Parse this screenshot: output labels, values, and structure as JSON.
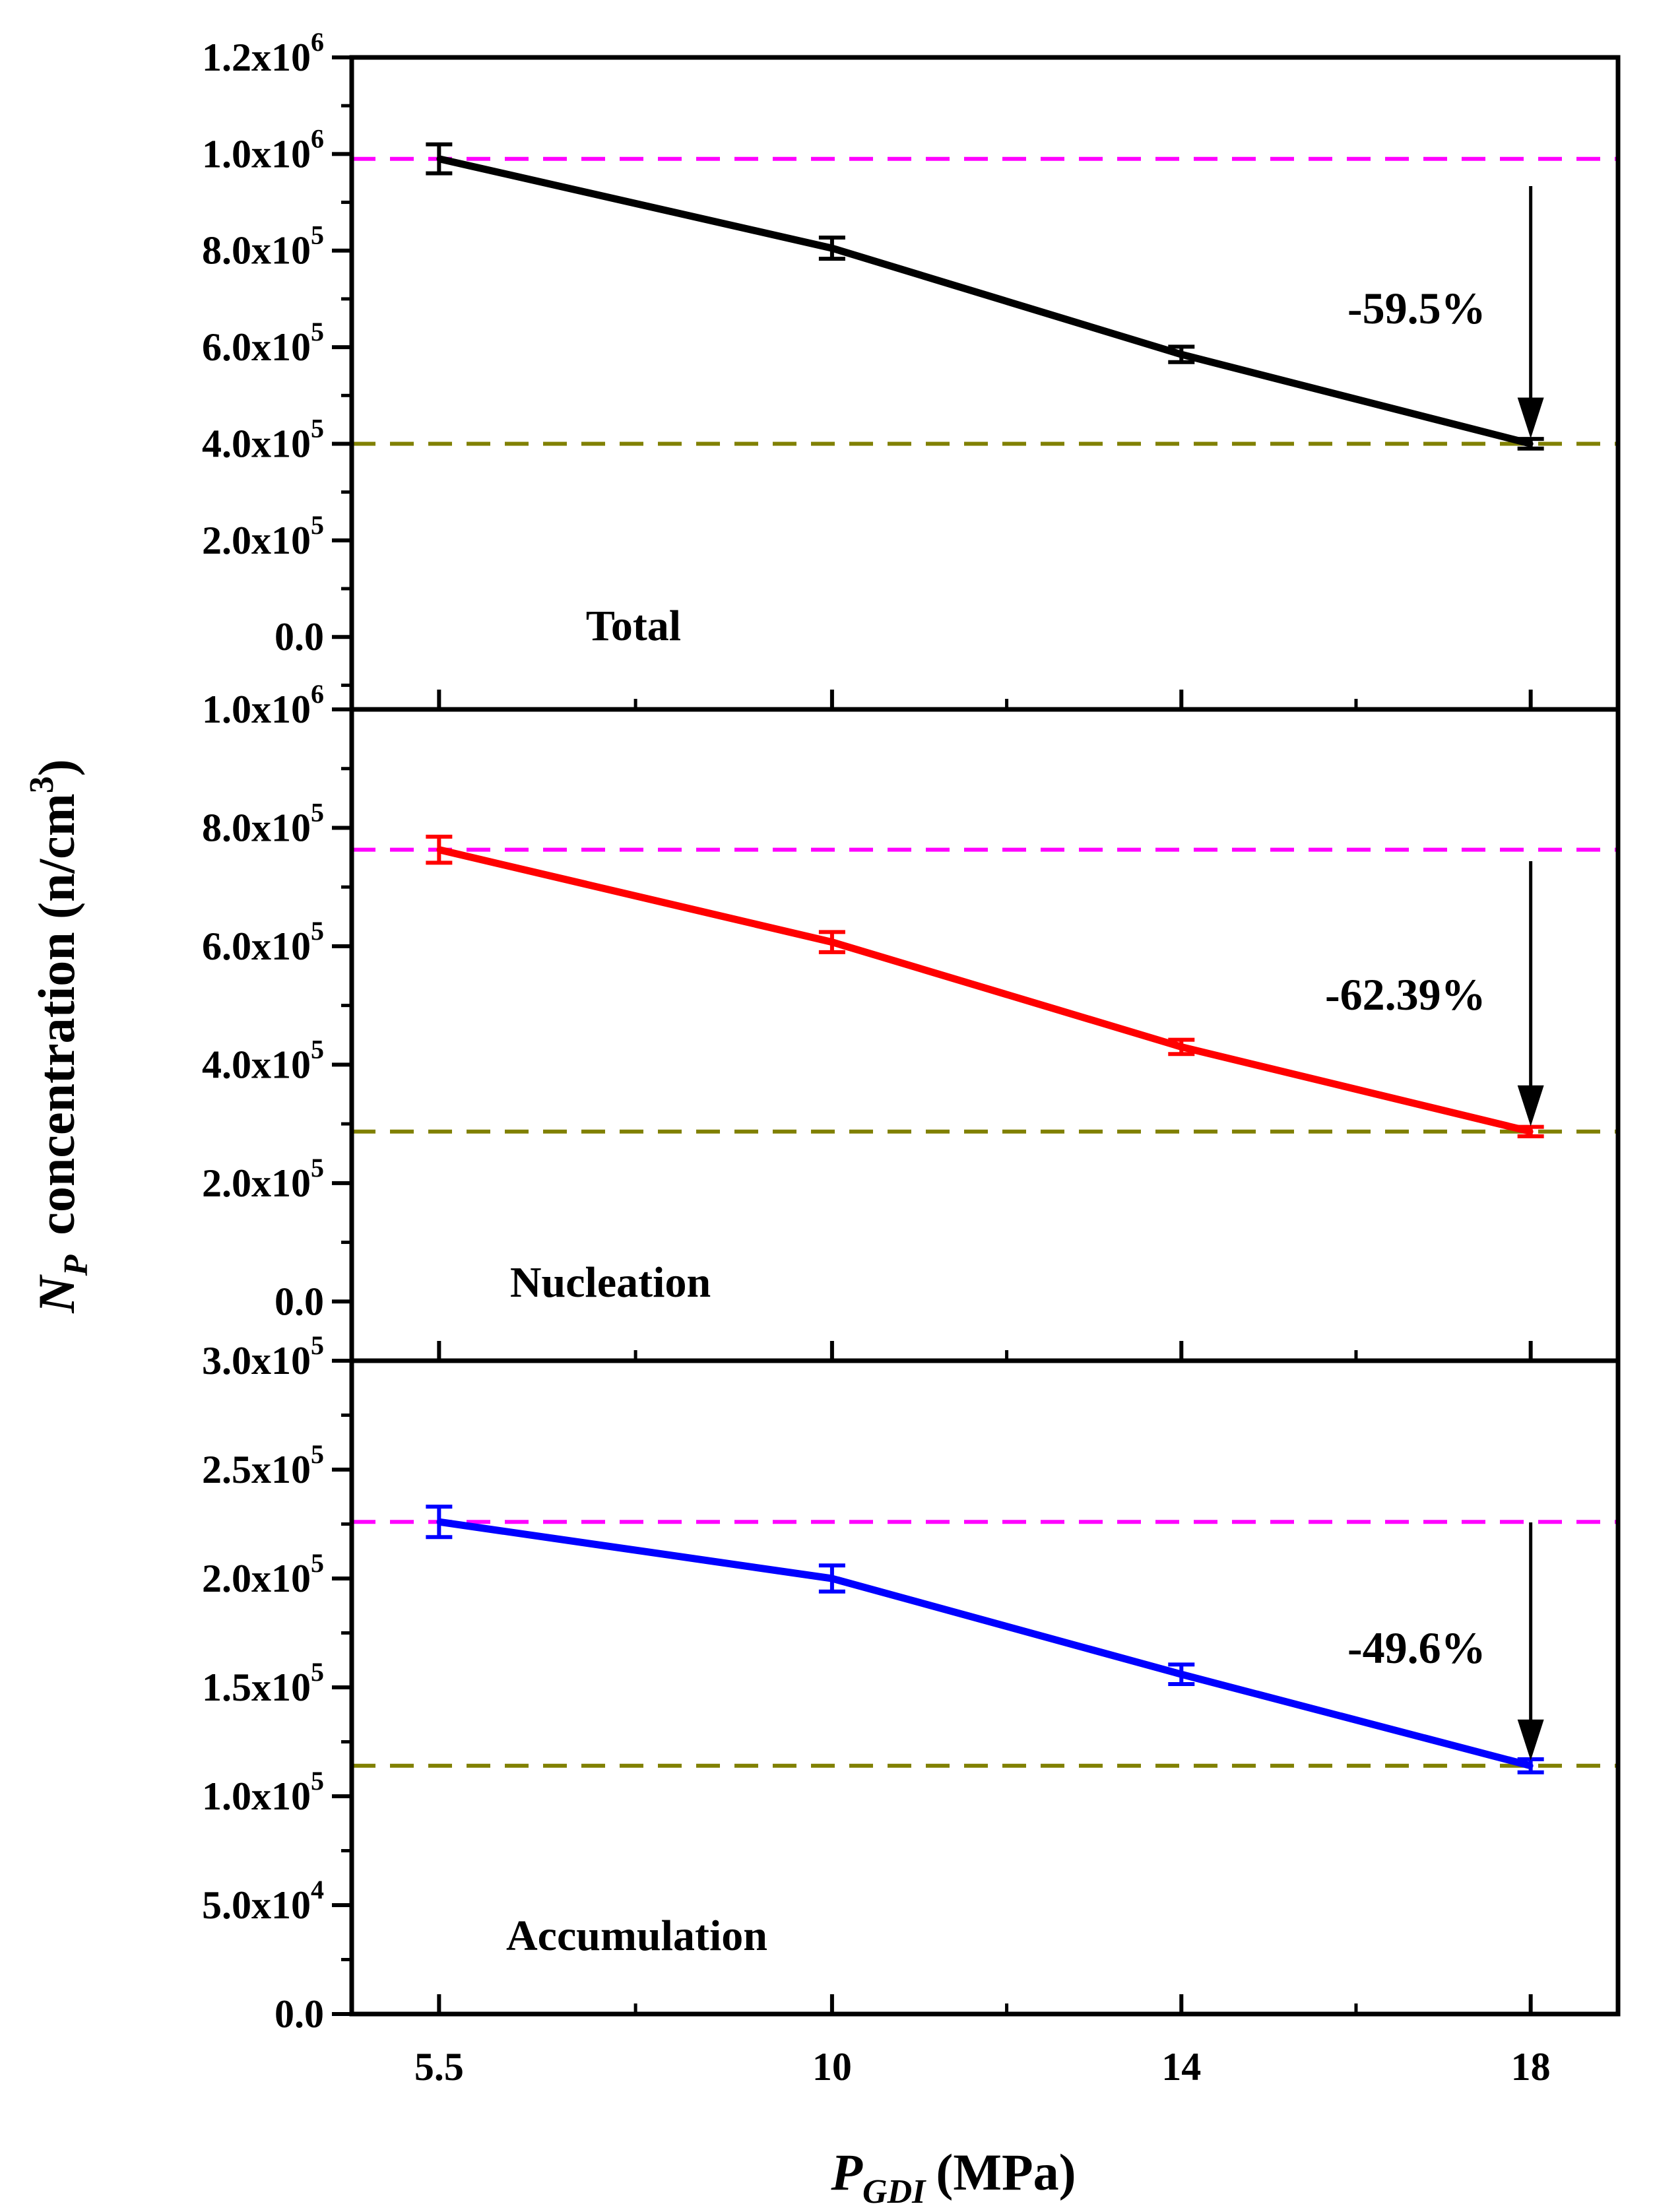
{
  "chart_data": {
    "type": "line",
    "shared_x": {
      "categories": [
        "5.5",
        "10",
        "14",
        "18"
      ],
      "values": [
        5.5,
        10,
        14,
        18
      ],
      "xlim": [
        4.5,
        19
      ],
      "xlabel_symbol": "P",
      "xlabel_subscript": "GDI",
      "xlabel_unit": "(MPa)"
    },
    "ylabel_symbol": "N",
    "ylabel_subscript": "P",
    "ylabel_text": "concentration (n/cm",
    "ylabel_superscript": "3",
    "ylabel_close": ")",
    "reference_line_colors": {
      "max": "#ff00ff",
      "min": "#808000"
    },
    "panels": [
      {
        "name": "Total",
        "label": "Total",
        "color": "#000000",
        "ylim": [
          -150000,
          1200000
        ],
        "yticks": [
          {
            "value": 1200000,
            "mant": "1.2x10",
            "exp": "6"
          },
          {
            "value": 1000000,
            "mant": "1.0x10",
            "exp": "6"
          },
          {
            "value": 800000,
            "mant": "8.0x10",
            "exp": "5"
          },
          {
            "value": 600000,
            "mant": "6.0x10",
            "exp": "5"
          },
          {
            "value": 400000,
            "mant": "4.0x10",
            "exp": "5"
          },
          {
            "value": 200000,
            "mant": "2.0x10",
            "exp": "5"
          },
          {
            "value": 0,
            "mant": "0.0",
            "exp": ""
          }
        ],
        "minor_step": 100000,
        "values": [
          990000,
          805000,
          585000,
          400000
        ],
        "errors": [
          30000,
          22000,
          16000,
          10000
        ],
        "ref_max": 990000,
        "ref_min": 400000,
        "annotation": "-59.5%"
      },
      {
        "name": "Nucleation",
        "label": "Nucleation",
        "color": "#ff0000",
        "ylim": [
          -100000,
          1000000
        ],
        "yticks": [
          {
            "value": 1000000,
            "mant": "1.0x10",
            "exp": "6"
          },
          {
            "value": 800000,
            "mant": "8.0x10",
            "exp": "5"
          },
          {
            "value": 600000,
            "mant": "6.0x10",
            "exp": "5"
          },
          {
            "value": 400000,
            "mant": "4.0x10",
            "exp": "5"
          },
          {
            "value": 200000,
            "mant": "2.0x10",
            "exp": "5"
          },
          {
            "value": 0,
            "mant": "0.0",
            "exp": ""
          }
        ],
        "minor_step": 100000,
        "values": [
          763000,
          607000,
          430000,
          287000
        ],
        "errors": [
          22000,
          17000,
          12000,
          8000
        ],
        "ref_max": 763000,
        "ref_min": 287000,
        "annotation": "-62.39%"
      },
      {
        "name": "Accumulation",
        "label": "Accumulation",
        "color": "#0000ff",
        "ylim": [
          0,
          300000
        ],
        "yticks": [
          {
            "value": 300000,
            "mant": "3.0x10",
            "exp": "5"
          },
          {
            "value": 250000,
            "mant": "2.5x10",
            "exp": "5"
          },
          {
            "value": 200000,
            "mant": "2.0x10",
            "exp": "5"
          },
          {
            "value": 150000,
            "mant": "1.5x10",
            "exp": "5"
          },
          {
            "value": 100000,
            "mant": "1.0x10",
            "exp": "5"
          },
          {
            "value": 50000,
            "mant": "5.0x10",
            "exp": "4"
          },
          {
            "value": 0,
            "mant": "0.0",
            "exp": ""
          }
        ],
        "minor_step": 25000,
        "values": [
          226000,
          200000,
          156000,
          114000
        ],
        "errors": [
          7000,
          6000,
          4500,
          3000
        ],
        "ref_max": 226000,
        "ref_min": 114000,
        "annotation": "-49.6%"
      }
    ]
  }
}
